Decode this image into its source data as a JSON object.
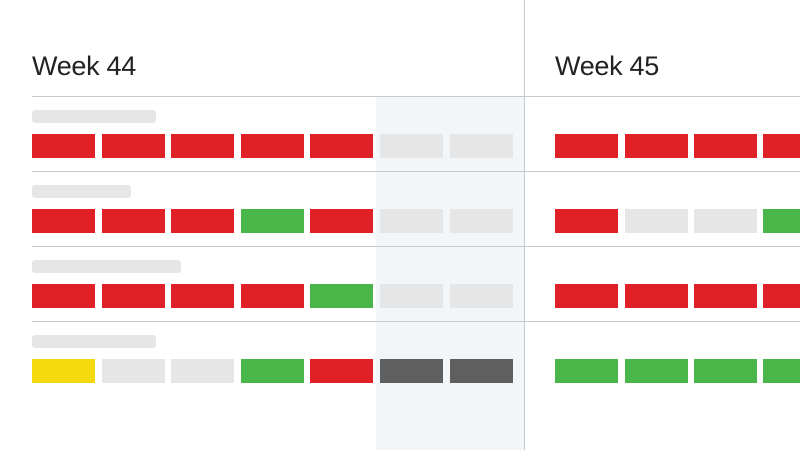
{
  "weeks": [
    {
      "title": "Week 44"
    },
    {
      "title": "Week 45"
    }
  ],
  "status_colors": {
    "red": "#df2027",
    "green": "#4ab64a",
    "yellow": "#f5d90f",
    "gray": "#e6e6e6",
    "dark": "#5f5f5f"
  },
  "rows": [
    {
      "week44": [
        "red",
        "red",
        "red",
        "red",
        "red",
        "gray",
        "gray"
      ],
      "week45": [
        "red",
        "red",
        "red",
        "red"
      ]
    },
    {
      "week44": [
        "red",
        "red",
        "red",
        "green",
        "red",
        "gray",
        "gray"
      ],
      "week45": [
        "red",
        "gray",
        "gray",
        "green"
      ]
    },
    {
      "week44": [
        "red",
        "red",
        "red",
        "red",
        "green",
        "gray",
        "gray"
      ],
      "week45": [
        "red",
        "red",
        "red",
        "red"
      ]
    },
    {
      "week44": [
        "yellow",
        "gray",
        "gray",
        "green",
        "red",
        "dark",
        "dark"
      ],
      "week45": [
        "green",
        "green",
        "green",
        "green"
      ]
    }
  ]
}
